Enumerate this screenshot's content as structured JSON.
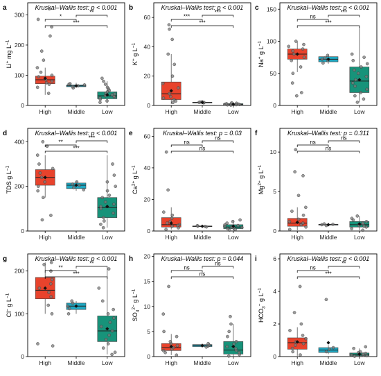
{
  "colors": {
    "High": "#e8432c",
    "Middle": "#1fa8c2",
    "Low": "#17937a"
  },
  "chart_data": [
    {
      "panel": "a",
      "type": "box",
      "title": "Kruskal–Wallis test: p < 0.001",
      "ylabel": "Li⁺ mg L⁻¹",
      "categories": [
        "High",
        "Middle",
        "Low"
      ],
      "yticks": [
        0,
        100,
        200,
        300
      ],
      "ylim": [
        0,
        340
      ],
      "boxes": [
        {
          "q1": 72,
          "median": 85,
          "q3": 97,
          "lo": 35,
          "hi": 125,
          "mean": 90
        },
        {
          "q1": 62,
          "median": 65,
          "q3": 68,
          "lo": 58,
          "hi": 75,
          "mean": 65
        },
        {
          "q1": 22,
          "median": 32,
          "q3": 45,
          "lo": 8,
          "hi": 80,
          "mean": 35
        }
      ],
      "points": [
        [
          70,
          75,
          80,
          85,
          95,
          100,
          110,
          125,
          150,
          180,
          230,
          260,
          285,
          320,
          40,
          60
        ],
        [
          58,
          62,
          65,
          68,
          70,
          72
        ],
        [
          10,
          15,
          20,
          25,
          28,
          30,
          32,
          35,
          38,
          40,
          45,
          50,
          55,
          60,
          70,
          80,
          90
        ]
      ],
      "comparisons": [
        {
          "pair": [
            "High",
            "Middle"
          ],
          "label": "*"
        },
        {
          "pair": [
            "High",
            "Low"
          ],
          "label": "***"
        },
        {
          "pair": [
            "Middle",
            "Low"
          ],
          "label": "**"
        }
      ]
    },
    {
      "panel": "b",
      "type": "box",
      "title": "Kruskal–Wallis test: p < 0.001",
      "ylabel": "K⁺ g L⁻¹",
      "categories": [
        "High",
        "Middle",
        "Low"
      ],
      "yticks": [
        0,
        20,
        40,
        60
      ],
      "ylim": [
        0,
        70
      ],
      "boxes": [
        {
          "q1": 4,
          "median": 8,
          "q3": 16,
          "lo": 1,
          "hi": 35,
          "mean": 10
        },
        {
          "q1": 1.8,
          "median": 2,
          "q3": 2.2,
          "lo": 1.5,
          "hi": 2.5,
          "mean": 2
        },
        {
          "q1": 0.5,
          "median": 0.8,
          "q3": 1.2,
          "lo": 0.1,
          "hi": 2,
          "mean": 0.9
        }
      ],
      "points": [
        [
          2,
          4,
          5,
          8,
          12,
          15,
          20,
          28,
          35,
          45,
          52,
          55,
          3,
          6
        ],
        [
          1.8,
          2,
          2.1,
          2.3,
          2.5
        ],
        [
          0.2,
          0.4,
          0.6,
          0.8,
          1,
          1.2,
          1.5,
          1.8,
          0.5,
          0.9
        ]
      ],
      "comparisons": [
        {
          "pair": [
            "High",
            "Middle"
          ],
          "label": "***"
        },
        {
          "pair": [
            "High",
            "Low"
          ],
          "label": "***"
        },
        {
          "pair": [
            "Middle",
            "Low"
          ],
          "label": "***"
        }
      ]
    },
    {
      "panel": "c",
      "type": "box",
      "title": "Kruskal–Wallis test: p < 0.001",
      "ylabel": "Na⁺ g L⁻¹",
      "categories": [
        "High",
        "Middle",
        "Low"
      ],
      "yticks": [
        0,
        50,
        100,
        150
      ],
      "ylim": [
        0,
        160
      ],
      "boxes": [
        {
          "q1": 72,
          "median": 80,
          "q3": 88,
          "lo": 52,
          "hi": 100,
          "mean": 80
        },
        {
          "q1": 68,
          "median": 72,
          "q3": 76,
          "lo": 65,
          "hi": 80,
          "mean": 72
        },
        {
          "q1": 20,
          "median": 38,
          "q3": 60,
          "lo": 5,
          "hi": 123,
          "mean": 40
        }
      ],
      "points": [
        [
          15,
          20,
          35,
          50,
          60,
          70,
          75,
          80,
          85,
          88,
          92,
          95,
          100
        ],
        [
          66,
          70,
          72,
          74,
          78
        ],
        [
          5,
          10,
          15,
          20,
          25,
          30,
          35,
          40,
          45,
          50,
          55,
          60,
          65,
          70,
          75,
          80
        ]
      ],
      "comparisons": [
        {
          "pair": [
            "High",
            "Middle"
          ],
          "label": "ns"
        },
        {
          "pair": [
            "High",
            "Low"
          ],
          "label": "***"
        },
        {
          "pair": [
            "Middle",
            "Low"
          ],
          "label": "***"
        }
      ]
    },
    {
      "panel": "d",
      "type": "box",
      "title": "Kruskal–Wallis test: p < 0.001",
      "ylabel": "TDS g L⁻¹",
      "categories": [
        "High",
        "Middle",
        "Low"
      ],
      "yticks": [
        0,
        200,
        400
      ],
      "ylim": [
        0,
        460
      ],
      "boxes": [
        {
          "q1": 205,
          "median": 240,
          "q3": 275,
          "lo": 150,
          "hi": 340,
          "mean": 240
        },
        {
          "q1": 190,
          "median": 205,
          "q3": 215,
          "lo": 180,
          "hi": 225,
          "mean": 205
        },
        {
          "q1": 60,
          "median": 105,
          "q3": 150,
          "lo": 15,
          "hi": 340,
          "mean": 110
        }
      ],
      "points": [
        [
          50,
          70,
          150,
          200,
          220,
          240,
          260,
          280,
          300,
          340,
          380,
          400,
          180
        ],
        [
          185,
          195,
          205,
          210,
          220
        ],
        [
          15,
          30,
          45,
          60,
          80,
          100,
          110,
          120,
          130,
          150,
          160,
          180,
          200,
          220,
          250,
          300
        ]
      ],
      "comparisons": [
        {
          "pair": [
            "High",
            "Middle"
          ],
          "label": "**"
        },
        {
          "pair": [
            "High",
            "Low"
          ],
          "label": "***"
        },
        {
          "pair": [
            "Middle",
            "Low"
          ],
          "label": "***"
        }
      ]
    },
    {
      "panel": "e",
      "type": "box",
      "title": "Kruskal–Wallis test: p = 0.03",
      "ylabel": "Ca²⁺ g L⁻¹",
      "categories": [
        "High",
        "Middle",
        "Low"
      ],
      "yticks": [
        0,
        20,
        40,
        60
      ],
      "ylim": [
        0,
        65
      ],
      "boxes": [
        {
          "q1": 2.5,
          "median": 4,
          "q3": 8.5,
          "lo": 1,
          "hi": 15,
          "mean": 5
        },
        {
          "q1": 2.8,
          "median": 3,
          "q3": 3.2,
          "lo": 2.5,
          "hi": 3.5,
          "mean": 3
        },
        {
          "q1": 1.5,
          "median": 2.5,
          "q3": 4,
          "lo": 0.3,
          "hi": 7,
          "mean": 3
        }
      ],
      "points": [
        [
          1,
          2,
          3,
          4,
          5,
          6,
          8,
          10,
          12,
          26,
          50,
          3.5
        ],
        [
          2.6,
          2.9,
          3.1,
          3.4
        ],
        [
          0.5,
          1,
          1.5,
          2,
          2.5,
          3,
          3.5,
          4,
          5,
          6,
          7,
          2.2
        ]
      ],
      "comparisons": [
        {
          "pair": [
            "High",
            "Middle"
          ],
          "label": "ns"
        },
        {
          "pair": [
            "High",
            "Low"
          ],
          "label": "ns"
        },
        {
          "pair": [
            "Middle",
            "Low"
          ],
          "label": "ns"
        }
      ]
    },
    {
      "panel": "f",
      "type": "box",
      "title": "Kruskal–Wallis test: p = 0.311",
      "ylabel": "Mg²⁺ g L⁻¹",
      "categories": [
        "High",
        "Middle",
        "Low"
      ],
      "yticks": [
        0,
        5,
        10
      ],
      "ylim": [
        0,
        13
      ],
      "boxes": [
        {
          "q1": 0.6,
          "median": 1,
          "q3": 1.6,
          "lo": 0.1,
          "hi": 3,
          "mean": 1.1
        },
        {
          "q1": 0.75,
          "median": 0.8,
          "q3": 0.85,
          "lo": 0.7,
          "hi": 0.9,
          "mean": 0.8
        },
        {
          "q1": 0.5,
          "median": 0.8,
          "q3": 1.2,
          "lo": 0.1,
          "hi": 1.9,
          "mean": 0.9
        }
      ],
      "points": [
        [
          0.2,
          0.5,
          0.8,
          1,
          1.2,
          1.5,
          2,
          2.5,
          3,
          4.5,
          7,
          7.5,
          10.3
        ],
        [
          0.7,
          0.8,
          0.85,
          0.9
        ],
        [
          0.1,
          0.3,
          0.5,
          0.7,
          0.9,
          1,
          1.2,
          1.4,
          1.6,
          1.9,
          0.6
        ]
      ],
      "comparisons": [
        {
          "pair": [
            "High",
            "Middle"
          ],
          "label": "ns"
        },
        {
          "pair": [
            "High",
            "Low"
          ],
          "label": "ns"
        },
        {
          "pair": [
            "Middle",
            "Low"
          ],
          "label": "ns"
        }
      ]
    },
    {
      "panel": "g",
      "type": "box",
      "title": "Kruskal–Wallis test: p < 0.001",
      "ylabel": "Cl⁻ g L⁻¹",
      "categories": [
        "High",
        "Middle",
        "Low"
      ],
      "yticks": [
        0,
        100,
        200
      ],
      "ylim": [
        0,
        240
      ],
      "boxes": [
        {
          "q1": 135,
          "median": 155,
          "q3": 185,
          "lo": 100,
          "hi": 220,
          "mean": 160
        },
        {
          "q1": 110,
          "median": 118,
          "q3": 125,
          "lo": 100,
          "hi": 130,
          "mean": 118
        },
        {
          "q1": 35,
          "median": 60,
          "q3": 95,
          "lo": 5,
          "hi": 205,
          "mean": 65
        }
      ],
      "points": [
        [
          25,
          30,
          100,
          120,
          140,
          150,
          160,
          170,
          180,
          200,
          215,
          220
        ],
        [
          100,
          112,
          118,
          125,
          130
        ],
        [
          5,
          10,
          20,
          30,
          40,
          50,
          60,
          70,
          80,
          90,
          100,
          110,
          130,
          160,
          205
        ]
      ],
      "comparisons": [
        {
          "pair": [
            "High",
            "Middle"
          ],
          "label": "**"
        },
        {
          "pair": [
            "High",
            "Low"
          ],
          "label": "***"
        },
        {
          "pair": [
            "Middle",
            "Low"
          ],
          "label": "**"
        }
      ]
    },
    {
      "panel": "h",
      "type": "box",
      "title": "Kruskal–Wallis test: p = 0.044",
      "ylabel": "SO₄²⁻ g L⁻¹",
      "categories": [
        "High",
        "Middle",
        "Low"
      ],
      "yticks": [
        0,
        5,
        10,
        15,
        20
      ],
      "ylim": [
        0,
        20.5
      ],
      "boxes": [
        {
          "q1": 1.2,
          "median": 1.8,
          "q3": 2.6,
          "lo": 0.3,
          "hi": 4.5,
          "mean": 2
        },
        {
          "q1": 2,
          "median": 2.2,
          "q3": 2.4,
          "lo": 1.8,
          "hi": 2.6,
          "mean": 2.2
        },
        {
          "q1": 0.5,
          "median": 1.3,
          "q3": 3,
          "lo": 0.1,
          "hi": 6.5,
          "mean": 2
        }
      ],
      "points": [
        [
          0.3,
          0.8,
          1.2,
          1.5,
          1.8,
          2.2,
          2.6,
          3,
          4,
          5,
          8.5,
          14
        ],
        [
          1.9,
          2.1,
          2.3,
          2.6
        ],
        [
          0.1,
          0.4,
          0.8,
          1.2,
          1.6,
          2,
          2.5,
          3,
          4,
          5,
          6.5,
          8
        ]
      ],
      "comparisons": [
        {
          "pair": [
            "High",
            "Middle"
          ],
          "label": "ns"
        },
        {
          "pair": [
            "High",
            "Low"
          ],
          "label": "ns"
        },
        {
          "pair": [
            "Middle",
            "Low"
          ],
          "label": "ns"
        }
      ]
    },
    {
      "panel": "i",
      "type": "box",
      "title": "Kruskal–Wallis test: p < 0.001",
      "ylabel": "HCO₃⁻ g L⁻¹",
      "categories": [
        "High",
        "Middle",
        "Low"
      ],
      "yticks": [
        0,
        2,
        4,
        6
      ],
      "ylim": [
        0,
        6.3
      ],
      "boxes": [
        {
          "q1": 0.45,
          "median": 0.85,
          "q3": 1.15,
          "lo": 0.05,
          "hi": 1.8,
          "mean": 0.9
        },
        {
          "q1": 0.25,
          "median": 0.4,
          "q3": 0.55,
          "lo": 0.15,
          "hi": 0.7,
          "mean": 0.85
        },
        {
          "q1": 0.05,
          "median": 0.12,
          "q3": 0.22,
          "lo": 0.02,
          "hi": 0.5,
          "mean": 0.15
        }
      ],
      "points": [
        [
          0.1,
          0.3,
          0.5,
          0.7,
          0.9,
          1.1,
          1.3,
          1.6,
          2,
          2.7,
          4.3,
          0.8
        ],
        [
          0.3,
          0.45,
          0.55,
          3.5
        ],
        [
          0.02,
          0.05,
          0.08,
          0.1,
          0.15,
          0.2,
          0.25,
          0.3,
          0.5,
          0.6
        ]
      ],
      "comparisons": [
        {
          "pair": [
            "High",
            "Middle"
          ],
          "label": "ns"
        },
        {
          "pair": [
            "High",
            "Low"
          ],
          "label": "***"
        },
        {
          "pair": [
            "Middle",
            "Low"
          ],
          "label": "**"
        }
      ]
    }
  ]
}
